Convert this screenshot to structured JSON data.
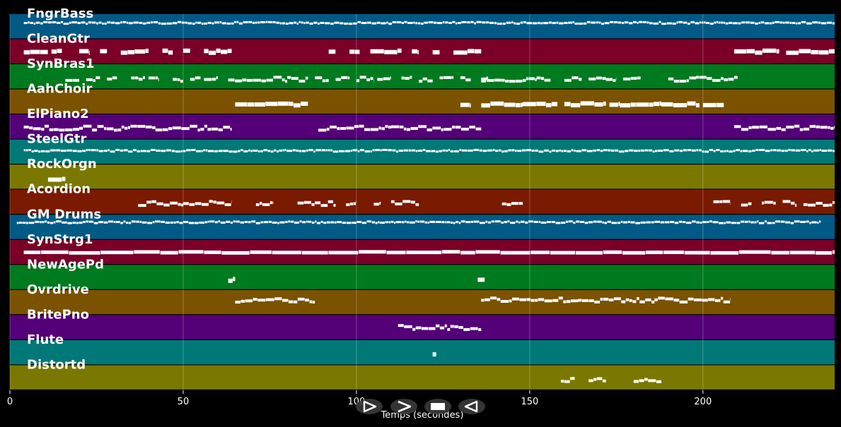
{
  "chart_data": {
    "type": "piano-roll",
    "xlabel": "Temps (secondes)",
    "xlim": [
      0,
      238
    ],
    "xticks": [
      0,
      50,
      100,
      150,
      200
    ],
    "grid": true,
    "tracks": [
      {
        "name": "FngrBass",
        "color": "#015a86",
        "pitch": 0.65,
        "density": "dense",
        "segments": [
          [
            4,
            238
          ]
        ]
      },
      {
        "name": "CleanGtr",
        "color": "#7a0028",
        "pitch": 0.5,
        "density": "blocks",
        "segments": [
          [
            4,
            11
          ],
          [
            12,
            15
          ],
          [
            20,
            23
          ],
          [
            26,
            28
          ],
          [
            32,
            40
          ],
          [
            44,
            47
          ],
          [
            50,
            52
          ],
          [
            56,
            64
          ],
          [
            92,
            94
          ],
          [
            98,
            101
          ],
          [
            104,
            113
          ],
          [
            116,
            118
          ],
          [
            122,
            124
          ],
          [
            128,
            136
          ],
          [
            209,
            222
          ],
          [
            224,
            238
          ]
        ]
      },
      {
        "name": "SynBras1",
        "color": "#007a1e",
        "pitch": 0.4,
        "density": "notes",
        "segments": [
          [
            16,
            20
          ],
          [
            22,
            26
          ],
          [
            28,
            31
          ],
          [
            35,
            39
          ],
          [
            40,
            43
          ],
          [
            47,
            50
          ],
          [
            52,
            55
          ],
          [
            56,
            60
          ],
          [
            63,
            65
          ],
          [
            65,
            80
          ],
          [
            80,
            86
          ],
          [
            88,
            92
          ],
          [
            94,
            98
          ],
          [
            100,
            105
          ],
          [
            106,
            110
          ],
          [
            113,
            116
          ],
          [
            118,
            122
          ],
          [
            124,
            128
          ],
          [
            130,
            133
          ],
          [
            136,
            138
          ],
          [
            136,
            142
          ],
          [
            142,
            146
          ],
          [
            146,
            152
          ],
          [
            152,
            156
          ],
          [
            160,
            165
          ],
          [
            167,
            172
          ],
          [
            172,
            175
          ],
          [
            177,
            182
          ],
          [
            190,
            198
          ],
          [
            198,
            210
          ]
        ]
      },
      {
        "name": "AahChoir",
        "color": "#7a5200",
        "pitch": 0.4,
        "density": "blocks",
        "segments": [
          [
            65,
            75
          ],
          [
            75,
            86
          ],
          [
            130,
            133
          ],
          [
            136,
            148
          ],
          [
            148,
            158
          ],
          [
            160,
            172
          ],
          [
            173,
            176
          ],
          [
            176,
            188
          ],
          [
            188,
            199
          ],
          [
            200,
            206
          ]
        ]
      },
      {
        "name": "ElPiano2",
        "color": "#540078",
        "pitch": 0.45,
        "density": "notes",
        "segments": [
          [
            4,
            20
          ],
          [
            20,
            42
          ],
          [
            42,
            64
          ],
          [
            89,
            110
          ],
          [
            110,
            136
          ],
          [
            209,
            224
          ],
          [
            224,
            238
          ]
        ]
      },
      {
        "name": "SteelGtr",
        "color": "#007878",
        "pitch": 0.55,
        "density": "dense",
        "segments": [
          [
            4,
            238
          ]
        ]
      },
      {
        "name": "RockOrgn",
        "color": "#7a7800",
        "pitch": 0.4,
        "density": "blocks",
        "segments": [
          [
            11,
            16
          ]
        ]
      },
      {
        "name": "Acordion",
        "color": "#7a1a00",
        "pitch": 0.45,
        "density": "notes",
        "segments": [
          [
            37,
            50
          ],
          [
            50,
            64
          ],
          [
            71,
            76
          ],
          [
            83,
            94
          ],
          [
            97,
            100
          ],
          [
            105,
            107
          ],
          [
            110,
            118
          ],
          [
            142,
            148
          ],
          [
            203,
            208
          ],
          [
            211,
            214
          ],
          [
            217,
            221
          ],
          [
            223,
            227
          ],
          [
            229,
            238
          ]
        ]
      },
      {
        "name": "GM Drums",
        "color": "#015a86",
        "pitch": 0.7,
        "density": "dense",
        "segments": [
          [
            2,
            234
          ]
        ]
      },
      {
        "name": "SynStrg1",
        "color": "#7a0028",
        "pitch": 0.5,
        "density": "thick",
        "segments": [
          [
            4,
            238
          ]
        ]
      },
      {
        "name": "NewAgePd",
        "color": "#007a1e",
        "pitch": 0.4,
        "density": "blocks",
        "segments": [
          [
            63,
            65
          ],
          [
            135,
            137
          ]
        ]
      },
      {
        "name": "Ovrdrive",
        "color": "#7a5200",
        "pitch": 0.6,
        "density": "notes",
        "segments": [
          [
            65,
            88
          ],
          [
            136,
            164
          ],
          [
            164,
            186
          ],
          [
            186,
            208
          ]
        ]
      },
      {
        "name": "BritePno",
        "color": "#540078",
        "pitch": 0.5,
        "density": "notes",
        "segments": [
          [
            112,
            136
          ]
        ]
      },
      {
        "name": "Flute",
        "color": "#007878",
        "pitch": 0.4,
        "density": "blocks",
        "segments": [
          [
            122,
            123
          ]
        ]
      },
      {
        "name": "Distortd",
        "color": "#7a7800",
        "pitch": 0.4,
        "density": "notes",
        "segments": [
          [
            159,
            163
          ],
          [
            167,
            172
          ],
          [
            180,
            188
          ]
        ]
      }
    ]
  },
  "controls": {
    "play_icon": "play-outline-icon",
    "forward_icon": "fast-forward-icon",
    "stop_icon": "stop-icon",
    "rewind_icon": "rewind-icon"
  }
}
